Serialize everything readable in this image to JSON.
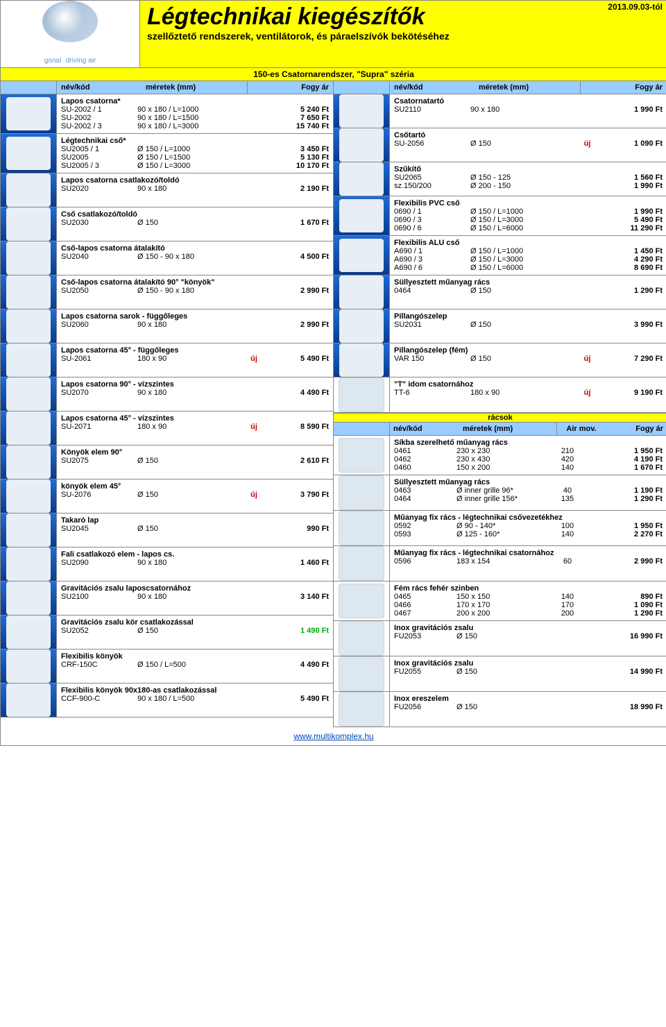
{
  "colors": {
    "header_bg": "#ffff00",
    "th_bg": "#99ccff",
    "img_bg_start": "#1e6bd6",
    "img_bg_end": "#0a3b8a",
    "new": "#cc0000",
    "link": "#0047ba"
  },
  "header": {
    "brand": "gonal",
    "brand_tag": "driving air",
    "title": "Légtechnikai kiegészítők",
    "subtitle": "szellőztető rendszerek, ventilátorok, és páraelszívók bekötéséhez",
    "date": "2013.09.03-tól",
    "section": "150-es Csatornarendszer, \"Supra\" széria"
  },
  "th": {
    "a": "név/kód",
    "b": "méretek (mm)",
    "c": "Fogy ár"
  },
  "left": [
    {
      "title": "Lapos csatorna*",
      "rows": [
        {
          "c": "SU-2002 / 1",
          "d": "90 x 180 / L=1000",
          "p": "5 240 Ft"
        },
        {
          "c": "SU-2002",
          "d": "90 x 180 / L=1500",
          "p": "7 650 Ft"
        },
        {
          "c": "SU-2002 / 3",
          "d": "90 x 180 / L=3000",
          "p": "15 740 Ft"
        }
      ]
    },
    {
      "title": "Légtechnikai cső*",
      "rows": [
        {
          "c": "SU2005 / 1",
          "d": "Ø 150 / L=1000",
          "p": "3 450 Ft"
        },
        {
          "c": "SU2005",
          "d": "Ø 150 / L=1500",
          "p": "5 130 Ft"
        },
        {
          "c": "SU2005 / 3",
          "d": "Ø 150 / L=3000",
          "p": "10 170 Ft"
        }
      ]
    },
    {
      "title": "Lapos csatorna csatlakozó/toldó",
      "rows": [
        {
          "c": "SU2020",
          "d": "90 x 180",
          "p": "2 190 Ft"
        }
      ]
    },
    {
      "title": "Cső csatlakozó/toldó",
      "rows": [
        {
          "c": "SU2030",
          "d": "Ø 150",
          "p": "1 670 Ft"
        }
      ]
    },
    {
      "title": "Cső-lapos csatorna átalakító",
      "rows": [
        {
          "c": "SU2040",
          "d": "Ø 150 - 90 x 180",
          "p": "4 500 Ft"
        }
      ]
    },
    {
      "title": "Cső-lapos csatorna átalakító 90° \"könyök\"",
      "rows": [
        {
          "c": "SU2050",
          "d": "Ø 150 - 90 x 180",
          "p": "2 990 Ft"
        }
      ]
    },
    {
      "title": "Lapos csatorna sarok - függőleges",
      "rows": [
        {
          "c": "SU2060",
          "d": "90 x 180",
          "p": "2 990 Ft"
        }
      ]
    },
    {
      "title": "Lapos csatorna 45° - függőleges",
      "rows": [
        {
          "c": "SU-2061",
          "d": "180 x 90",
          "n": "új",
          "p": "5 490 Ft"
        }
      ]
    },
    {
      "title": "Lapos csatorna 90° - vízszintes",
      "rows": [
        {
          "c": "SU2070",
          "d": "90 x 180",
          "p": "4 490 Ft"
        }
      ]
    },
    {
      "title": "Lapos csatorna 45° - vízszintes",
      "rows": [
        {
          "c": "SU-2071",
          "d": "180 x 90",
          "n": "új",
          "p": "8 590 Ft"
        }
      ]
    },
    {
      "title": "Könyök elem 90°",
      "rows": [
        {
          "c": "SU2075",
          "d": "Ø 150",
          "p": "2 610 Ft"
        }
      ]
    },
    {
      "title": "könyök elem 45°",
      "rows": [
        {
          "c": "SU-2076",
          "d": "Ø 150",
          "n": "új",
          "p": "3 790 Ft"
        }
      ]
    },
    {
      "title": "Takaró lap",
      "rows": [
        {
          "c": "SU2045",
          "d": "Ø 150",
          "p": "990 Ft"
        }
      ]
    },
    {
      "title": "Fali csatlakozó elem - lapos cs.",
      "rows": [
        {
          "c": "SU2090",
          "d": "90 x 180",
          "p": "1 460 Ft"
        }
      ]
    },
    {
      "title": "Gravitációs zsalu laposcsatornához",
      "rows": [
        {
          "c": "SU2100",
          "d": "90 x 180",
          "p": "3 140 Ft"
        }
      ]
    },
    {
      "title": "Gravitációs zsalu kör csatlakozással",
      "rows": [
        {
          "c": "SU2052",
          "d": "Ø 150",
          "p": "1 490 Ft",
          "hi": true
        }
      ]
    },
    {
      "title": "Flexibilis könyök",
      "rows": [
        {
          "c": "CRF-150C",
          "d": "Ø 150 / L=500",
          "p": "4 490 Ft"
        }
      ]
    },
    {
      "title": "Flexibilis könyök 90x180-as csatlakozással",
      "rows": [
        {
          "c": "CCF-900-C",
          "d": "90 x 180 / L=500",
          "p": "5 490 Ft"
        }
      ]
    }
  ],
  "right": [
    {
      "title": "Csatornatartó",
      "rows": [
        {
          "c": "SU2110",
          "d": "90 x 180",
          "p": "1 990 Ft"
        }
      ]
    },
    {
      "title": "Csőtartó",
      "rows": [
        {
          "c": "SU-2056",
          "d": "Ø 150",
          "n": "új",
          "p": "1 090 Ft"
        }
      ]
    },
    {
      "title": "Szűkítő",
      "rows": [
        {
          "c": "SU2065",
          "d": "Ø 150 - 125",
          "p": "1 560 Ft"
        },
        {
          "c": "sz.150/200",
          "d": "Ø 200 - 150",
          "p": "1 990 Ft"
        }
      ]
    },
    {
      "title": "Flexibilis PVC cső",
      "rows": [
        {
          "c": "0690 / 1",
          "d": "Ø 150 / L=1000",
          "p": "1 990 Ft"
        },
        {
          "c": "0690 / 3",
          "d": "Ø 150 / L=3000",
          "p": "5 490 Ft"
        },
        {
          "c": "0690 / 6",
          "d": "Ø 150 / L=6000",
          "p": "11 290 Ft"
        }
      ]
    },
    {
      "title": "Flexibilis ALU cső",
      "rows": [
        {
          "c": "A690 / 1",
          "d": "Ø 150 / L=1000",
          "p": "1 450 Ft"
        },
        {
          "c": "A690 / 3",
          "d": "Ø 150 / L=3000",
          "p": "4 290 Ft"
        },
        {
          "c": "A690 / 6",
          "d": "Ø 150 / L=6000",
          "p": "8 690 Ft"
        }
      ]
    },
    {
      "title": "Süllyesztett műanyag rács",
      "rows": [
        {
          "c": "0464",
          "d": "Ø 150",
          "p": "1 290 Ft"
        }
      ]
    },
    {
      "title": "Pillangószelep",
      "rows": [
        {
          "c": "SU2031",
          "d": "Ø 150",
          "p": "3 990 Ft"
        }
      ]
    },
    {
      "title": "Pillangószelep (fém)",
      "rows": [
        {
          "c": "VAR 150",
          "d": "Ø 150",
          "n": "új",
          "p": "7 290 Ft"
        }
      ]
    },
    {
      "title": "\"T\" idom csatornához",
      "white": true,
      "rows": [
        {
          "c": "TT-6",
          "d": "180 x 90",
          "n": "új",
          "p": "9 190 Ft"
        }
      ]
    }
  ],
  "racsok": {
    "header": "rácsok",
    "th": {
      "a": "név/kód",
      "b": "méretek (mm)",
      "c": "Air mov.",
      "d": "Fogy ár"
    },
    "groups": [
      {
        "title": "Síkba szerelhető műanyag rács",
        "white": true,
        "rows": [
          {
            "c": "0461",
            "d": "230 x 230",
            "m": "210",
            "p": "1 950 Ft"
          },
          {
            "c": "0462",
            "d": "230 x 430",
            "m": "420",
            "p": "4 190 Ft"
          },
          {
            "c": "0460",
            "d": "150 x 200",
            "m": "140",
            "p": "1 670 Ft"
          }
        ]
      },
      {
        "title": "Süllyesztett műanyag rács",
        "white": true,
        "rows": [
          {
            "c": "0463",
            "d": "Ø inner grille 96*",
            "m": "40",
            "p": "1 190 Ft"
          },
          {
            "c": "0464",
            "d": "Ø inner grille 156*",
            "m": "135",
            "p": "1 290 Ft"
          }
        ]
      },
      {
        "title": "Műanyag fix rács - légtechnikai csővezetékhez",
        "white": true,
        "rows": [
          {
            "c": "0592",
            "d": "Ø 90 - 140*",
            "m": "100",
            "p": "1 950 Ft"
          },
          {
            "c": "0593",
            "d": "Ø 125 - 160*",
            "m": "140",
            "p": "2 270 Ft"
          }
        ]
      },
      {
        "title": "Műanyag fix rács - légtechnikai csatornához",
        "white": true,
        "rows": [
          {
            "c": "0596",
            "d": "183 x 154",
            "m": "60",
            "p": "2 990 Ft"
          }
        ]
      },
      {
        "title": "Fém rács fehér szinben",
        "white": true,
        "rows": [
          {
            "c": "0465",
            "d": "150 x 150",
            "m": "140",
            "p": "890 Ft"
          },
          {
            "c": "0466",
            "d": "170 x 170",
            "m": "170",
            "p": "1 090 Ft"
          },
          {
            "c": "0467",
            "d": "200 x 200",
            "m": "200",
            "p": "1 290 Ft"
          }
        ]
      },
      {
        "title": "Inox gravitációs zsalu",
        "white": true,
        "rows": [
          {
            "c": "FU2053",
            "d": "Ø 150",
            "m": "",
            "p": "16 990 Ft"
          }
        ]
      },
      {
        "title": "Inox gravitációs zsalu",
        "white": true,
        "rows": [
          {
            "c": "FU2055",
            "d": "Ø 150",
            "m": "",
            "p": "14 990 Ft"
          }
        ]
      },
      {
        "title": "Inox ereszelem",
        "white": true,
        "rows": [
          {
            "c": "FU2056",
            "d": "Ø 150",
            "m": "",
            "p": "18 990 Ft"
          }
        ]
      }
    ]
  },
  "footer": {
    "link_text": "www.multikomplex.hu"
  }
}
